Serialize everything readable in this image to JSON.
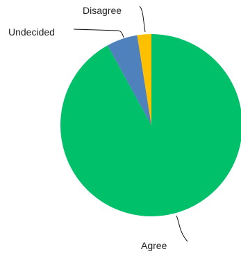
{
  "chart_data": {
    "type": "pie",
    "categories": [
      "Agree",
      "Undecided",
      "Disagree"
    ],
    "values": [
      92,
      5.5,
      2.5
    ],
    "colors": [
      "#00c06a",
      "#4f81bd",
      "#ffc000"
    ],
    "legend": "none",
    "data_labels": "category name with leader lines"
  }
}
